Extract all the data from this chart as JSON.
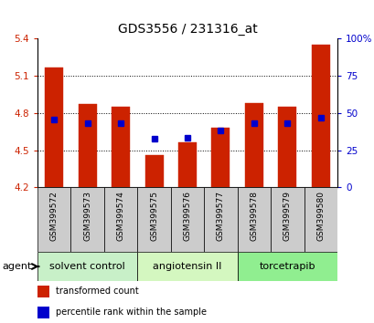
{
  "title": "GDS3556 / 231316_at",
  "samples": [
    "GSM399572",
    "GSM399573",
    "GSM399574",
    "GSM399575",
    "GSM399576",
    "GSM399577",
    "GSM399578",
    "GSM399579",
    "GSM399580"
  ],
  "bar_values": [
    5.17,
    4.87,
    4.85,
    4.46,
    4.56,
    4.68,
    4.88,
    4.85,
    5.35
  ],
  "percentile_values": [
    4.75,
    4.72,
    4.72,
    4.59,
    4.6,
    4.66,
    4.72,
    4.72,
    4.76
  ],
  "bar_bottom": 4.2,
  "ylim_left": [
    4.2,
    5.4
  ],
  "ylim_right": [
    0,
    100
  ],
  "yticks_left": [
    4.2,
    4.5,
    4.8,
    5.1,
    5.4
  ],
  "yticks_right": [
    0,
    25,
    50,
    75,
    100
  ],
  "bar_color": "#cc2200",
  "percentile_color": "#0000cc",
  "groups": [
    {
      "label": "solvent control",
      "indices": [
        0,
        1,
        2
      ],
      "color": "#c8f0c8"
    },
    {
      "label": "angiotensin II",
      "indices": [
        3,
        4,
        5
      ],
      "color": "#d4f7c0"
    },
    {
      "label": "torcetrapib",
      "indices": [
        6,
        7,
        8
      ],
      "color": "#90ee90"
    }
  ],
  "agent_label": "agent",
  "legend_items": [
    {
      "label": "transformed count",
      "color": "#cc2200"
    },
    {
      "label": "percentile rank within the sample",
      "color": "#0000cc"
    }
  ],
  "bar_width": 0.55,
  "grid_ticks": [
    4.5,
    4.8,
    5.1
  ],
  "sample_box_color": "#cccccc",
  "title_fontsize": 10,
  "tick_fontsize": 7.5,
  "sample_fontsize": 6.5,
  "group_fontsize": 8,
  "legend_fontsize": 7
}
